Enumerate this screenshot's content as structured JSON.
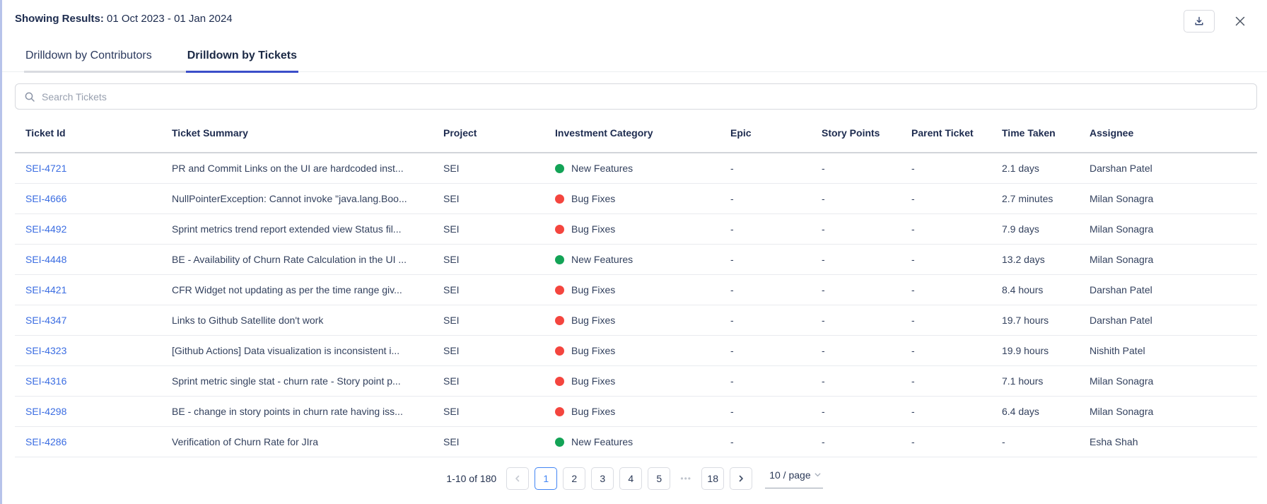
{
  "header": {
    "showing_results_label": "Showing Results:",
    "date_range": "01 Oct 2023 - 01 Jan 2024"
  },
  "tabs": [
    {
      "label": "Drilldown by Contributors",
      "active": false
    },
    {
      "label": "Drilldown by Tickets",
      "active": true
    }
  ],
  "search": {
    "placeholder": "Search Tickets"
  },
  "table": {
    "columns": [
      "Ticket Id",
      "Ticket Summary",
      "Project",
      "Investment Category",
      "Epic",
      "Story Points",
      "Parent Ticket",
      "Time Taken",
      "Assignee"
    ],
    "rows": [
      {
        "id": "SEI-4721",
        "summary": "PR and Commit Links on the UI are hardcoded inst...",
        "project": "SEI",
        "category": "New Features",
        "epic": "-",
        "story_points": "-",
        "parent_ticket": "-",
        "time_taken": "2.1 days",
        "assignee": "Darshan Patel"
      },
      {
        "id": "SEI-4666",
        "summary": "NullPointerException: Cannot invoke \"java.lang.Boo...",
        "project": "SEI",
        "category": "Bug Fixes",
        "epic": "-",
        "story_points": "-",
        "parent_ticket": "-",
        "time_taken": "2.7 minutes",
        "assignee": "Milan Sonagra"
      },
      {
        "id": "SEI-4492",
        "summary": "Sprint metrics trend report extended view Status fil...",
        "project": "SEI",
        "category": "Bug Fixes",
        "epic": "-",
        "story_points": "-",
        "parent_ticket": "-",
        "time_taken": "7.9 days",
        "assignee": "Milan Sonagra"
      },
      {
        "id": "SEI-4448",
        "summary": "BE - Availability of Churn Rate Calculation in the UI ...",
        "project": "SEI",
        "category": "New Features",
        "epic": "-",
        "story_points": "-",
        "parent_ticket": "-",
        "time_taken": "13.2 days",
        "assignee": "Milan Sonagra"
      },
      {
        "id": "SEI-4421",
        "summary": "CFR Widget not updating as per the time range giv...",
        "project": "SEI",
        "category": "Bug Fixes",
        "epic": "-",
        "story_points": "-",
        "parent_ticket": "-",
        "time_taken": "8.4 hours",
        "assignee": "Darshan Patel"
      },
      {
        "id": "SEI-4347",
        "summary": "Links to Github Satellite don't work",
        "project": "SEI",
        "category": "Bug Fixes",
        "epic": "-",
        "story_points": "-",
        "parent_ticket": "-",
        "time_taken": "19.7 hours",
        "assignee": "Darshan Patel"
      },
      {
        "id": "SEI-4323",
        "summary": "[Github Actions] Data visualization is inconsistent i...",
        "project": "SEI",
        "category": "Bug Fixes",
        "epic": "-",
        "story_points": "-",
        "parent_ticket": "-",
        "time_taken": "19.9 hours",
        "assignee": "Nishith Patel"
      },
      {
        "id": "SEI-4316",
        "summary": "Sprint metric single stat - churn rate - Story point p...",
        "project": "SEI",
        "category": "Bug Fixes",
        "epic": "-",
        "story_points": "-",
        "parent_ticket": "-",
        "time_taken": "7.1 hours",
        "assignee": "Milan Sonagra"
      },
      {
        "id": "SEI-4298",
        "summary": "BE - change in story points in churn rate having iss...",
        "project": "SEI",
        "category": "Bug Fixes",
        "epic": "-",
        "story_points": "-",
        "parent_ticket": "-",
        "time_taken": "6.4 days",
        "assignee": "Milan Sonagra"
      },
      {
        "id": "SEI-4286",
        "summary": "Verification of Churn Rate for JIra",
        "project": "SEI",
        "category": "New Features",
        "epic": "-",
        "story_points": "-",
        "parent_ticket": "-",
        "time_taken": "-",
        "assignee": "Esha Shah"
      }
    ]
  },
  "pagination": {
    "range_label": "1-10 of 180",
    "pages": [
      "1",
      "2",
      "3",
      "4",
      "5"
    ],
    "ellipsis": "•••",
    "last_page": "18",
    "active_page": "1",
    "page_size_label": "10 / page"
  },
  "colors": {
    "tab_indicator": "#3b4ec9",
    "link_blue": "#3b6de2",
    "active_page_blue": "#4285f4",
    "left_accent_border": "#b7c3ea",
    "category_dots": {
      "New Features": "#13a356",
      "Bug Fixes": "#f4453e"
    }
  }
}
